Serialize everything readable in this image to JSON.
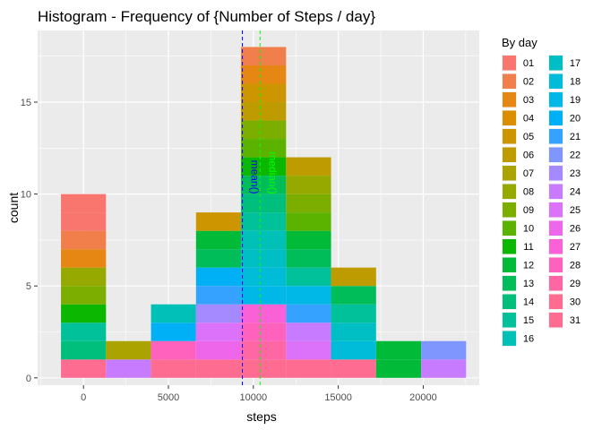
{
  "chart_data": {
    "type": "bar",
    "title": "Histogram - Frequency of {Number of Steps / day}",
    "xlabel": "steps",
    "ylabel": "count",
    "xlim": [
      -2700,
      23300
    ],
    "ylim": [
      -0.4,
      18.9
    ],
    "x_ticks": [
      0,
      5000,
      10000,
      15000,
      20000
    ],
    "y_ticks": [
      0,
      5,
      10,
      15
    ],
    "grid": true,
    "bin_width": 2650,
    "bin_centers": [
      0,
      2650,
      5300,
      7950,
      10600,
      13250,
      15900,
      18550,
      21200
    ],
    "legend": {
      "title": "By day",
      "position": "right",
      "items": [
        {
          "label": "01",
          "color": "#F8766D"
        },
        {
          "label": "02",
          "color": "#F17F4B"
        },
        {
          "label": "03",
          "color": "#E68613"
        },
        {
          "label": "04",
          "color": "#DB8E00"
        },
        {
          "label": "05",
          "color": "#CD9600"
        },
        {
          "label": "06",
          "color": "#BE9C00"
        },
        {
          "label": "07",
          "color": "#ABA300"
        },
        {
          "label": "08",
          "color": "#95A900"
        },
        {
          "label": "09",
          "color": "#7CAE00"
        },
        {
          "label": "10",
          "color": "#5BB300"
        },
        {
          "label": "11",
          "color": "#0CB702"
        },
        {
          "label": "12",
          "color": "#00BA38"
        },
        {
          "label": "13",
          "color": "#00BC59"
        },
        {
          "label": "14",
          "color": "#00BF7D"
        },
        {
          "label": "15",
          "color": "#00C19A"
        },
        {
          "label": "16",
          "color": "#00C0B8"
        },
        {
          "label": "17",
          "color": "#00BFC4"
        },
        {
          "label": "18",
          "color": "#00BCD8"
        },
        {
          "label": "19",
          "color": "#00B8E7"
        },
        {
          "label": "20",
          "color": "#00B0F6"
        },
        {
          "label": "21",
          "color": "#35A2FF"
        },
        {
          "label": "22",
          "color": "#7F96FF"
        },
        {
          "label": "23",
          "color": "#A58AFF"
        },
        {
          "label": "24",
          "color": "#C77CFF"
        },
        {
          "label": "25",
          "color": "#DC71FA"
        },
        {
          "label": "26",
          "color": "#EE67EB"
        },
        {
          "label": "27",
          "color": "#FB61D7"
        },
        {
          "label": "28",
          "color": "#FF62BC"
        },
        {
          "label": "29",
          "color": "#FF67A4"
        },
        {
          "label": "30",
          "color": "#FF6C90"
        },
        {
          "label": "31",
          "color": "#FF6C91"
        }
      ]
    },
    "stacks": [
      [
        "31",
        "14",
        "15",
        "11",
        "09",
        "08",
        "03",
        "02",
        "01",
        "01"
      ],
      [
        "24",
        "07"
      ],
      [
        "31",
        "28",
        "20",
        "16"
      ],
      [
        "31",
        "26",
        "25",
        "23",
        "21",
        "20",
        "13",
        "12",
        "05"
      ],
      [
        "31",
        "29",
        "28",
        "27",
        "19",
        "18",
        "17",
        "16",
        "15",
        "14",
        "13",
        "11",
        "10",
        "09",
        "06",
        "05",
        "03",
        "02"
      ],
      [
        "31",
        "25",
        "24",
        "21",
        "19",
        "15",
        "13",
        "12",
        "10",
        "09",
        "08",
        "06"
      ],
      [
        "31",
        "18",
        "17",
        "15",
        "13",
        "06"
      ],
      [
        "12",
        "12"
      ],
      [
        "24",
        "22"
      ]
    ],
    "annotations": [
      {
        "label": "mean()",
        "x": 9354,
        "color": "#0000FF",
        "style": "dashed"
      },
      {
        "label": "median()",
        "x": 10395,
        "color": "#00FF00",
        "style": "dashed"
      }
    ]
  }
}
